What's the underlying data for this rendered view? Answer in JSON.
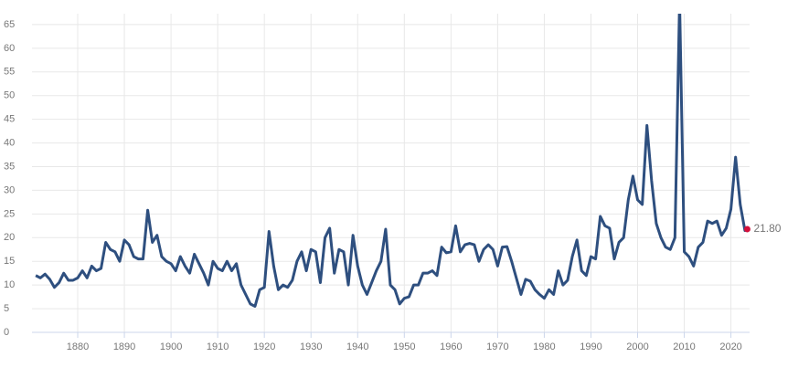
{
  "chart_data": {
    "type": "line",
    "x": [
      1871,
      1872,
      1873,
      1874,
      1875,
      1876,
      1877,
      1878,
      1879,
      1880,
      1881,
      1882,
      1883,
      1884,
      1885,
      1886,
      1887,
      1888,
      1889,
      1890,
      1891,
      1892,
      1893,
      1894,
      1895,
      1896,
      1897,
      1898,
      1899,
      1900,
      1901,
      1902,
      1903,
      1904,
      1905,
      1906,
      1907,
      1908,
      1909,
      1910,
      1911,
      1912,
      1913,
      1914,
      1915,
      1916,
      1917,
      1918,
      1919,
      1920,
      1921,
      1922,
      1923,
      1924,
      1925,
      1926,
      1927,
      1928,
      1929,
      1930,
      1931,
      1932,
      1933,
      1934,
      1935,
      1936,
      1937,
      1938,
      1939,
      1940,
      1941,
      1942,
      1943,
      1944,
      1945,
      1946,
      1947,
      1948,
      1949,
      1950,
      1951,
      1952,
      1953,
      1954,
      1955,
      1956,
      1957,
      1958,
      1959,
      1960,
      1961,
      1962,
      1963,
      1964,
      1965,
      1966,
      1967,
      1968,
      1969,
      1970,
      1971,
      1972,
      1973,
      1974,
      1975,
      1976,
      1977,
      1978,
      1979,
      1980,
      1981,
      1982,
      1983,
      1984,
      1985,
      1986,
      1987,
      1988,
      1989,
      1990,
      1991,
      1992,
      1993,
      1994,
      1995,
      1996,
      1997,
      1998,
      1999,
      2000,
      2001,
      2002,
      2003,
      2004,
      2005,
      2006,
      2007,
      2008,
      2009,
      2010,
      2011,
      2012,
      2013,
      2014,
      2015,
      2016,
      2017,
      2018,
      2019,
      2020,
      2021,
      2022,
      2023,
      2023.5
    ],
    "series": [
      {
        "color": "#2e4f7f",
        "values": [
          12,
          11.5,
          12.3,
          11.2,
          9.5,
          10.5,
          12.5,
          11,
          11,
          11.5,
          13,
          11.5,
          14,
          13,
          13.5,
          19,
          17.5,
          17,
          15,
          19.5,
          18.5,
          16,
          15.5,
          15.5,
          25.8,
          19,
          20.5,
          16,
          15,
          14.5,
          13,
          16,
          14,
          12.5,
          16.5,
          14.5,
          12.5,
          10,
          15,
          13.5,
          13,
          15,
          13,
          14.5,
          10,
          8,
          6,
          5.5,
          9,
          9.5,
          21.3,
          14,
          9,
          10,
          9.5,
          11,
          15,
          17,
          13,
          17.5,
          17,
          10.5,
          20,
          22,
          12.5,
          17.5,
          17,
          10,
          20.5,
          14,
          10,
          8,
          10.5,
          13,
          15,
          21.8,
          10,
          9,
          6,
          7.2,
          7.5,
          10,
          10,
          12.5,
          12.5,
          13,
          12,
          18,
          16.8,
          17,
          22.5,
          17,
          18.5,
          18.8,
          18.5,
          15,
          17.5,
          18.5,
          17.5,
          14,
          18,
          18.1,
          15,
          11.5,
          8,
          11.2,
          10.8,
          9,
          8,
          7.2,
          9,
          8,
          13,
          10,
          11,
          16,
          19.5,
          13,
          12,
          16,
          15.5,
          24.5,
          22.5,
          22,
          15.5,
          19,
          20,
          28,
          33,
          28,
          27,
          43.7,
          32,
          23,
          20,
          18,
          17.5,
          20,
          70,
          17,
          16,
          14,
          18,
          19,
          23.5,
          23,
          23.5,
          20.5,
          22,
          26,
          37,
          27,
          21.5,
          21.8
        ],
        "value_labels": [
          null,
          null,
          null,
          null,
          null,
          null,
          null,
          null,
          null,
          null,
          null,
          null,
          null,
          null,
          null,
          null,
          null,
          null,
          null,
          null,
          null,
          null,
          null,
          null,
          null,
          null,
          null,
          null,
          null,
          null,
          null,
          null,
          null,
          null,
          null,
          null,
          null,
          null,
          null,
          null,
          null,
          null,
          null,
          null,
          null,
          null,
          null,
          null,
          null,
          null,
          null,
          null,
          null,
          null,
          null,
          null,
          null,
          null,
          null,
          null,
          null,
          null,
          null,
          null,
          null,
          null,
          null,
          null,
          null,
          null,
          null,
          null,
          null,
          null,
          null,
          null,
          null,
          null,
          null,
          null,
          null,
          null,
          null,
          null,
          null,
          null,
          null,
          null,
          null,
          null,
          null,
          null,
          null,
          null,
          null,
          null,
          null,
          null,
          null,
          null,
          null,
          null,
          null,
          null,
          null,
          null,
          null,
          null,
          null,
          null,
          null,
          null,
          null,
          null,
          null,
          null,
          null,
          null,
          null,
          null,
          null,
          null,
          null,
          null,
          null,
          null,
          null,
          null,
          null,
          null,
          null,
          null,
          null,
          null,
          null,
          null,
          null,
          null,
          null,
          null,
          null,
          null,
          null,
          null,
          null,
          null,
          null,
          null,
          null,
          null,
          null,
          null,
          null,
          "21.80"
        ]
      }
    ],
    "xlim": [
      1870.2,
      2024
    ],
    "xticks": [
      1880,
      1890,
      1900,
      1910,
      1920,
      1930,
      1940,
      1950,
      1960,
      1970,
      1980,
      1990,
      2000,
      2010,
      2020
    ],
    "ylim": [
      0,
      67.3
    ],
    "yticks": [
      0,
      5,
      10,
      15,
      20,
      25,
      30,
      35,
      40,
      45,
      50,
      55,
      60,
      65
    ],
    "grid": true,
    "highlight_color": "#d3103c"
  }
}
